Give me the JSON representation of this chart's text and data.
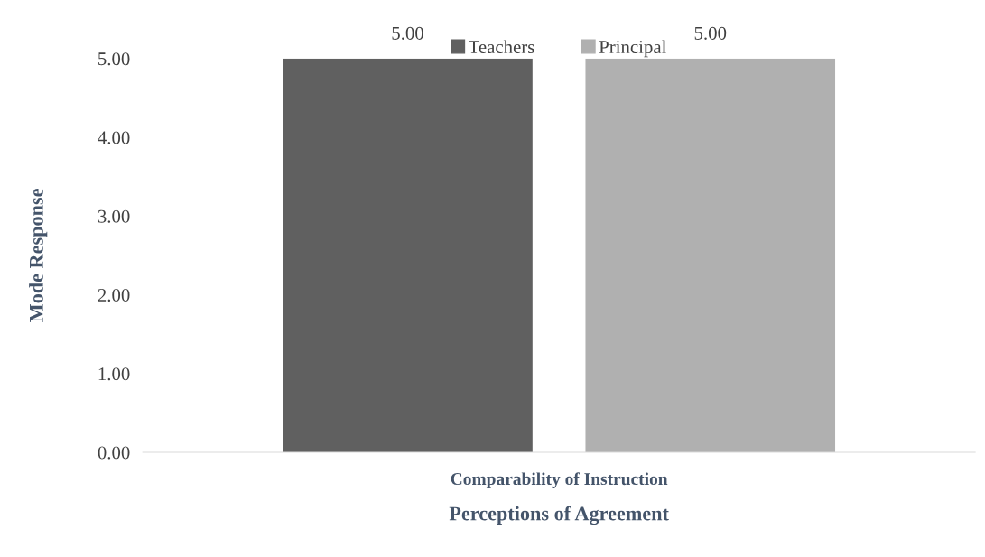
{
  "chart_data": {
    "type": "bar",
    "xlabel": "Perceptions of Agreement",
    "ylabel": "Mode Response",
    "categories": [
      "Comparability of Instruction"
    ],
    "series": [
      {
        "name": "Teachers",
        "color": "#606060",
        "values": [
          5.0
        ],
        "value_labels": [
          "5.00"
        ]
      },
      {
        "name": "Principal",
        "color": "#b0b0b0",
        "values": [
          5.0
        ],
        "value_labels": [
          "5.00"
        ]
      }
    ],
    "ylim": [
      0,
      5
    ],
    "yticks": [
      {
        "value": 0,
        "label": "0.00"
      },
      {
        "value": 1,
        "label": "1.00"
      },
      {
        "value": 2,
        "label": "2.00"
      },
      {
        "value": 3,
        "label": "3.00"
      },
      {
        "value": 4,
        "label": "4.00"
      },
      {
        "value": 5,
        "label": "5.00"
      }
    ],
    "grid": false,
    "legend": "top"
  }
}
